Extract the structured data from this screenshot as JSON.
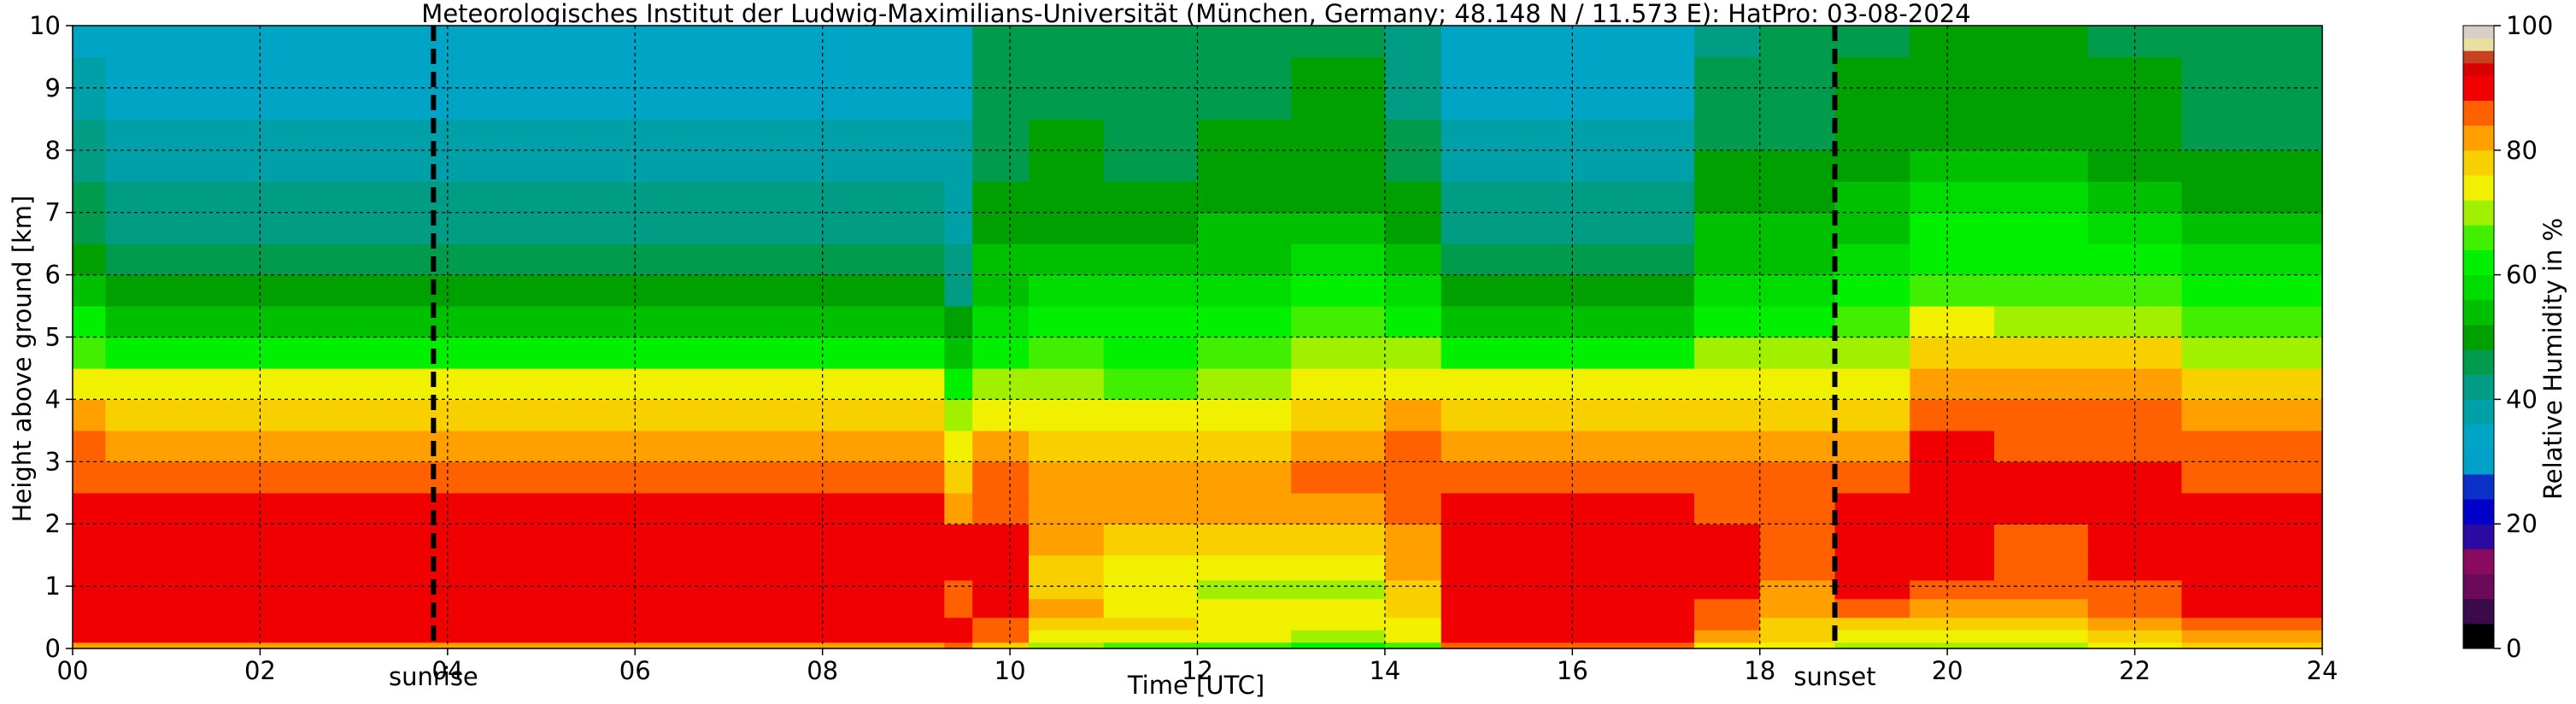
{
  "chart_data": {
    "type": "heatmap",
    "title": "Meteorologisches Institut der Ludwig-Maximilians-Universität (München, Germany; 48.148 N / 11.573 E):    HatPro: 03-08-2024",
    "xlabel": "Time [UTC]",
    "ylabel": "Height above ground [km]",
    "xlim": [
      0,
      24
    ],
    "ylim": [
      0,
      10
    ],
    "x_ticks": [
      0,
      2,
      4,
      6,
      8,
      10,
      12,
      14,
      16,
      18,
      20,
      22,
      24
    ],
    "x_tick_labels": [
      "00",
      "02",
      "04",
      "06",
      "08",
      "10",
      "12",
      "14",
      "16",
      "18",
      "20",
      "22",
      "24"
    ],
    "y_ticks": [
      0,
      1,
      2,
      3,
      4,
      5,
      6,
      7,
      8,
      9,
      10
    ],
    "y_tick_labels": [
      "0",
      "1",
      "2",
      "3",
      "4",
      "5",
      "6",
      "7",
      "8",
      "9",
      "10"
    ],
    "grid": true,
    "sunrise_hour": 3.85,
    "sunset_hour": 18.8,
    "sun_labels": {
      "sunrise": "sunrise",
      "sunset": "sunset"
    },
    "colorbar": {
      "label": "Relative Humidity in %",
      "range": [
        0,
        100
      ],
      "ticks": [
        0,
        20,
        40,
        60,
        80,
        100
      ],
      "tick_labels": [
        "0",
        "20",
        "40",
        "60",
        "80",
        "100"
      ],
      "segments": [
        {
          "from": 0,
          "to": 4,
          "color": "#000000"
        },
        {
          "from": 4,
          "to": 8,
          "color": "#3a0a4a"
        },
        {
          "from": 8,
          "to": 12,
          "color": "#6a0a58"
        },
        {
          "from": 12,
          "to": 16,
          "color": "#8a0a60"
        },
        {
          "from": 16,
          "to": 20,
          "color": "#2a0aa0"
        },
        {
          "from": 20,
          "to": 24,
          "color": "#0000c8"
        },
        {
          "from": 24,
          "to": 28,
          "color": "#0a30c8"
        },
        {
          "from": 28,
          "to": 32,
          "color": "#00a0c8"
        },
        {
          "from": 32,
          "to": 36,
          "color": "#00a4c4"
        },
        {
          "from": 36,
          "to": 40,
          "color": "#00a0a8"
        },
        {
          "from": 40,
          "to": 44,
          "color": "#009c84"
        },
        {
          "from": 44,
          "to": 48,
          "color": "#009b4c"
        },
        {
          "from": 48,
          "to": 52,
          "color": "#00a000"
        },
        {
          "from": 52,
          "to": 56,
          "color": "#00c000"
        },
        {
          "from": 56,
          "to": 60,
          "color": "#00dc00"
        },
        {
          "from": 60,
          "to": 64,
          "color": "#00f000"
        },
        {
          "from": 64,
          "to": 68,
          "color": "#40f000"
        },
        {
          "from": 68,
          "to": 72,
          "color": "#a0f000"
        },
        {
          "from": 72,
          "to": 76,
          "color": "#f0f000"
        },
        {
          "from": 76,
          "to": 80,
          "color": "#f8d000"
        },
        {
          "from": 80,
          "to": 84,
          "color": "#ffa000"
        },
        {
          "from": 84,
          "to": 88,
          "color": "#ff6000"
        },
        {
          "from": 88,
          "to": 92,
          "color": "#f00000"
        },
        {
          "from": 92,
          "to": 94,
          "color": "#d80000"
        },
        {
          "from": 94,
          "to": 96,
          "color": "#c84020"
        },
        {
          "from": 96,
          "to": 98,
          "color": "#e8e0a0"
        },
        {
          "from": 98,
          "to": 100,
          "color": "#d8d0c8"
        }
      ]
    },
    "height_levels_km": [
      0.1,
      0.3,
      0.5,
      0.8,
      1.1,
      1.5,
      2.0,
      2.5,
      3.0,
      3.5,
      4.0,
      4.5,
      5.0,
      5.5,
      6.0,
      6.5,
      7.0,
      7.5,
      8.0,
      8.5,
      9.0,
      9.5,
      10.0
    ],
    "time_periods": [
      {
        "from": 0.0,
        "to": 0.35,
        "rh": [
          80,
          88,
          90,
          91,
          90,
          90,
          89,
          88,
          86,
          84,
          80,
          74,
          66,
          60,
          55,
          50,
          46,
          44,
          42,
          40,
          38,
          36,
          34
        ]
      },
      {
        "from": 0.35,
        "to": 9.3,
        "rh": [
          82,
          90,
          91,
          91,
          91,
          91,
          90,
          89,
          86,
          80,
          76,
          72,
          62,
          54,
          48,
          44,
          42,
          40,
          38,
          36,
          34,
          33,
          32
        ]
      },
      {
        "from": 9.3,
        "to": 9.6,
        "rh": [
          85,
          90,
          88,
          86,
          86,
          88,
          88,
          82,
          78,
          72,
          68,
          60,
          55,
          50,
          42,
          40,
          38,
          38,
          37,
          36,
          34,
          33,
          32
        ]
      },
      {
        "from": 9.6,
        "to": 10.2,
        "rh": [
          76,
          84,
          86,
          88,
          88,
          89,
          88,
          86,
          84,
          80,
          75,
          68,
          62,
          58,
          55,
          52,
          50,
          48,
          47,
          46,
          46,
          45,
          44
        ]
      },
      {
        "from": 10.2,
        "to": 11.0,
        "rh": [
          68,
          74,
          78,
          80,
          78,
          76,
          80,
          82,
          80,
          76,
          74,
          68,
          64,
          60,
          56,
          52,
          50,
          49,
          48,
          48,
          47,
          47,
          46
        ]
      },
      {
        "from": 11.0,
        "to": 12.0,
        "rh": [
          66,
          72,
          76,
          74,
          72,
          74,
          78,
          80,
          80,
          76,
          73,
          66,
          62,
          60,
          58,
          52,
          50,
          48,
          47,
          46,
          46,
          45,
          44
        ]
      },
      {
        "from": 12.0,
        "to": 13.0,
        "rh": [
          64,
          72,
          74,
          72,
          70,
          72,
          76,
          80,
          82,
          78,
          74,
          70,
          66,
          62,
          58,
          54,
          52,
          50,
          49,
          48,
          47,
          46,
          46
        ]
      },
      {
        "from": 13.0,
        "to": 14.0,
        "rh": [
          62,
          70,
          72,
          72,
          70,
          72,
          76,
          82,
          84,
          80,
          76,
          72,
          68,
          64,
          60,
          56,
          53,
          51,
          50,
          49,
          48,
          48,
          47
        ]
      },
      {
        "from": 14.0,
        "to": 14.6,
        "rh": [
          64,
          72,
          74,
          76,
          78,
          80,
          82,
          84,
          86,
          84,
          80,
          74,
          68,
          62,
          58,
          54,
          50,
          48,
          46,
          44,
          43,
          42,
          42
        ]
      },
      {
        "from": 14.6,
        "to": 17.3,
        "rh": [
          84,
          90,
          91,
          91,
          91,
          91,
          90,
          89,
          86,
          80,
          76,
          72,
          62,
          54,
          48,
          44,
          42,
          40,
          38,
          36,
          34,
          33,
          32
        ]
      },
      {
        "from": 17.3,
        "to": 18.0,
        "rh": [
          74,
          80,
          84,
          86,
          88,
          88,
          88,
          86,
          84,
          80,
          76,
          72,
          68,
          62,
          58,
          55,
          52,
          50,
          48,
          46,
          45,
          44,
          42
        ]
      },
      {
        "from": 18.0,
        "to": 18.8,
        "rh": [
          72,
          76,
          78,
          80,
          82,
          84,
          86,
          86,
          84,
          80,
          76,
          72,
          68,
          62,
          58,
          55,
          52,
          50,
          48,
          47,
          46,
          45,
          44
        ]
      },
      {
        "from": 18.8,
        "to": 19.6,
        "rh": [
          70,
          74,
          78,
          84,
          88,
          88,
          88,
          88,
          86,
          82,
          78,
          74,
          70,
          64,
          60,
          56,
          54,
          52,
          50,
          49,
          48,
          48,
          47
        ]
      },
      {
        "from": 19.6,
        "to": 20.5,
        "rh": [
          68,
          72,
          76,
          82,
          86,
          88,
          88,
          88,
          88,
          88,
          86,
          82,
          78,
          72,
          66,
          62,
          60,
          56,
          52,
          50,
          49,
          48,
          48
        ]
      },
      {
        "from": 20.5,
        "to": 21.5,
        "rh": [
          70,
          74,
          78,
          82,
          84,
          86,
          86,
          88,
          88,
          86,
          84,
          80,
          76,
          70,
          66,
          62,
          60,
          56,
          52,
          50,
          49,
          48,
          48
        ]
      },
      {
        "from": 21.5,
        "to": 22.5,
        "rh": [
          72,
          76,
          80,
          84,
          86,
          88,
          88,
          88,
          88,
          86,
          84,
          80,
          76,
          70,
          64,
          60,
          56,
          52,
          50,
          49,
          48,
          48,
          47
        ]
      },
      {
        "from": 22.5,
        "to": 24.0,
        "rh": [
          76,
          82,
          86,
          88,
          88,
          88,
          88,
          88,
          86,
          84,
          80,
          76,
          70,
          64,
          60,
          56,
          52,
          50,
          48,
          47,
          46,
          46,
          45
        ]
      }
    ]
  }
}
